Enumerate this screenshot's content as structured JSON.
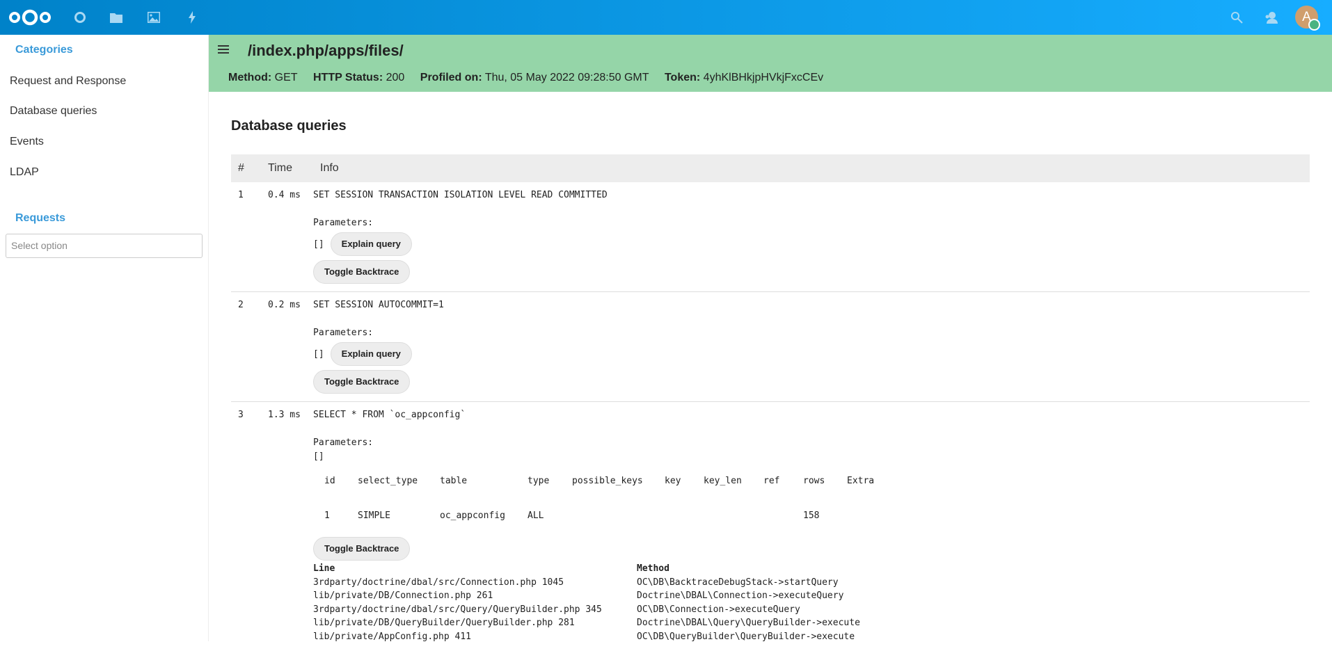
{
  "topbar": {
    "colors": {
      "start": "#0082c9",
      "end": "#17adff"
    },
    "apps": [
      "dashboard-icon",
      "files-icon",
      "photos-icon",
      "activity-icon"
    ],
    "right": [
      "search-icon",
      "contacts-icon"
    ],
    "avatar_letter": "A",
    "avatar_color": "#d09e6d",
    "status_color": "#49b382"
  },
  "sidebar": {
    "categories_title": "Categories",
    "items": [
      {
        "label": "Request and Response"
      },
      {
        "label": "Database queries"
      },
      {
        "label": "Events"
      },
      {
        "label": "LDAP"
      }
    ],
    "requests_title": "Requests",
    "select_placeholder": "Select option"
  },
  "header": {
    "title": "/index.php/apps/files/",
    "method_label": "Method:",
    "method": "GET",
    "status_label": "HTTP Status:",
    "status": "200",
    "profiled_label": "Profiled on:",
    "profiled": "Thu, 05 May 2022 09:28:50 GMT",
    "token_label": "Token:",
    "token": "4yhKlBHkjpHVkjFxcCEv",
    "bg": "#95d5a8"
  },
  "main": {
    "heading": "Database queries",
    "columns": [
      "#",
      "Time",
      "Info"
    ],
    "parameters_label": "Parameters:",
    "explain_label": "Explain query",
    "toggle_label": "Toggle Backtrace",
    "queries": [
      {
        "n": "1",
        "time": "0.4 ms",
        "sql": "SET SESSION TRANSACTION ISOLATION LEVEL READ COMMITTED",
        "params": "[]"
      },
      {
        "n": "2",
        "time": "0.2 ms",
        "sql": "SET SESSION AUTOCOMMIT=1",
        "params": "[]"
      },
      {
        "n": "3",
        "time": "1.3 ms",
        "sql": "SELECT * FROM `oc_appconfig`",
        "params": "[]",
        "explain": {
          "headers": [
            "id",
            "select_type",
            "table",
            "type",
            "possible_keys",
            "key",
            "key_len",
            "ref",
            "rows",
            "Extra"
          ],
          "row": [
            "1",
            "SIMPLE",
            "oc_appconfig",
            "ALL",
            "",
            "",
            "",
            "",
            "158",
            ""
          ]
        },
        "backtrace": {
          "headers": [
            "Line",
            "Method"
          ],
          "rows": [
            [
              "3rdparty/doctrine/dbal/src/Connection.php 1045",
              "OC\\DB\\BacktraceDebugStack->startQuery"
            ],
            [
              "lib/private/DB/Connection.php 261",
              "Doctrine\\DBAL\\Connection->executeQuery"
            ],
            [
              "3rdparty/doctrine/dbal/src/Query/QueryBuilder.php 345",
              "OC\\DB\\Connection->executeQuery"
            ],
            [
              "lib/private/DB/QueryBuilder/QueryBuilder.php 281",
              "Doctrine\\DBAL\\Query\\QueryBuilder->execute"
            ],
            [
              "lib/private/AppConfig.php 411",
              "OC\\DB\\QueryBuilder\\QueryBuilder->execute"
            ]
          ]
        }
      }
    ]
  }
}
